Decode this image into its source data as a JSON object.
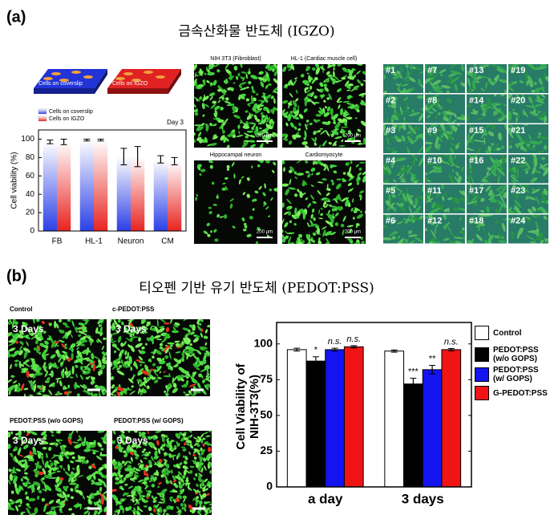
{
  "panel_a": {
    "label": "(a)",
    "title": "금속산화물 반도체 (IGZO)",
    "illustration": [
      "Cells on coverslip",
      "Cells on IGZO"
    ],
    "micrographs": [
      {
        "caption": "NIH 3T3 (Fibroblast)",
        "scale": "200 µm"
      },
      {
        "caption": "HL-1 (Cardiac muscle cell)",
        "scale": "200 µm"
      },
      {
        "caption": "Hippocampal neuron",
        "scale": "200 µm"
      },
      {
        "caption": "Cardiomyocyte",
        "scale": "200 µm"
      }
    ],
    "array": [
      "#1",
      "#2",
      "#3",
      "#4",
      "#5",
      "#6",
      "#7",
      "#8",
      "#9",
      "#10",
      "#11",
      "#12",
      "#13",
      "#14",
      "#15",
      "#16",
      "#17",
      "#18",
      "#19",
      "#20",
      "#21",
      "#22",
      "#23",
      "#24"
    ]
  },
  "panel_b": {
    "label": "(b)",
    "title": "티오펜 기반 유기 반도체 (PEDOT:PSS)",
    "micrographs": [
      {
        "caption": "Control",
        "day": "3 Days"
      },
      {
        "caption": "c-PEDOT:PSS",
        "day": "3 Days"
      },
      {
        "caption": "PEDOT:PSS  (w/o GOPS)",
        "day": "3 Days"
      },
      {
        "caption": "PEDOT:PSS  (w/ GOPS)",
        "day": "3 Days"
      }
    ]
  },
  "chart_data": [
    {
      "type": "bar",
      "subtitle": "Day 3",
      "ylabel": "Cell viability (%)",
      "categories": [
        "FB",
        "HL-1",
        "Neuron",
        "CM"
      ],
      "gradient": true,
      "series": [
        {
          "name": "Cells on coverslip",
          "color": "#2b3fe6",
          "values": [
            97,
            99,
            81,
            78
          ],
          "errors": [
            2,
            1,
            9,
            4
          ]
        },
        {
          "name": "Cells on IGZO",
          "color": "#e8231f",
          "values": [
            97,
            99,
            81,
            76
          ],
          "errors": [
            3,
            1,
            11,
            4
          ]
        }
      ],
      "ylim": [
        0,
        110
      ],
      "yticks": [
        0,
        20,
        40,
        60,
        80,
        100
      ]
    },
    {
      "type": "bar",
      "ylabel": "Cell Viability of NIH-3T3(%)",
      "categories": [
        "a day",
        "3 days"
      ],
      "series": [
        {
          "name": "Control",
          "color": "#ffffff",
          "values": [
            96,
            95
          ],
          "errors": [
            1,
            0.8
          ],
          "annotations": [
            null,
            null
          ]
        },
        {
          "name": "PEDOT:PSS (w/o GOPS)",
          "color": "#000000",
          "values": [
            88,
            72
          ],
          "errors": [
            3,
            4
          ],
          "annotations": [
            "*",
            "***"
          ]
        },
        {
          "name": "PEDOT:PSS (w/ GOPS)",
          "color": "#1414f0",
          "values": [
            96,
            82
          ],
          "errors": [
            1,
            3
          ],
          "annotations": [
            "n.s.",
            "**"
          ]
        },
        {
          "name": "G-PEDOT:PSS",
          "color": "#f01414",
          "values": [
            98,
            96
          ],
          "errors": [
            0.8,
            0.8
          ],
          "annotations": [
            "n.s.",
            "n.s."
          ]
        }
      ],
      "ylim": [
        0,
        115
      ],
      "yticks": [
        0,
        25,
        50,
        75,
        100
      ]
    }
  ]
}
